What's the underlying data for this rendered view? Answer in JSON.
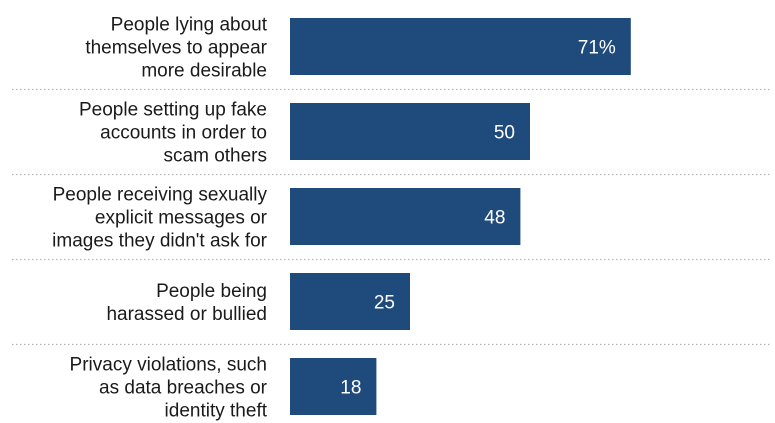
{
  "chart_data": {
    "type": "bar",
    "orientation": "horizontal",
    "categories": [
      [
        "People lying about",
        "themselves to appear",
        "more desirable"
      ],
      [
        "People setting up fake",
        "accounts in order to",
        "scam others"
      ],
      [
        "People receiving sexually",
        "explicit messages or",
        "images they didn't ask for"
      ],
      [
        "People being",
        "harassed or bullied"
      ],
      [
        "Privacy violations, such",
        "as data breaches or",
        "identity theft"
      ]
    ],
    "values": [
      71,
      50,
      48,
      25,
      18
    ],
    "value_labels": [
      "71%",
      "50",
      "48",
      "25",
      "18"
    ],
    "xlim": [
      0,
      100
    ],
    "bar_color": "#1f4a7c",
    "separator_color": "#b3b3b3",
    "grid": false,
    "legend": "none"
  }
}
